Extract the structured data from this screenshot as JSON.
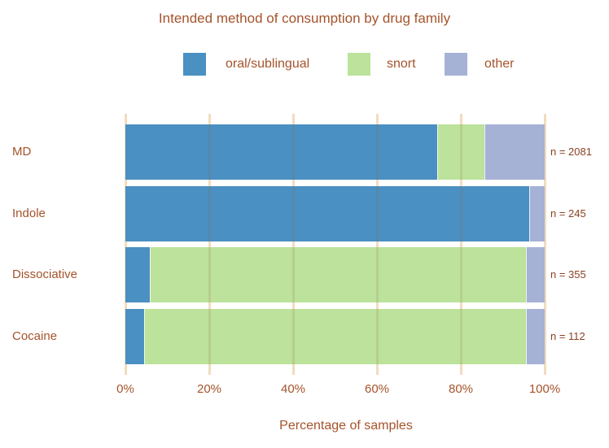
{
  "colors": {
    "background": "#ffffff",
    "title": "#a5532b",
    "axis_text": "#a5532b",
    "annotation": "#8a4122",
    "grid": "#f2dcbe",
    "grid_on_bar": "rgba(150,108,60,0.16)"
  },
  "chart_data": {
    "type": "bar",
    "orientation": "horizontal",
    "stacked": true,
    "title": "Intended method of consumption by drug family",
    "xlabel": "Percentage of samples",
    "categories": [
      "MD",
      "Indole",
      "Dissociative",
      "Cocaine"
    ],
    "series": [
      {
        "name": "oral/sublingual",
        "color": "#4a90c2",
        "values": [
          74.4,
          96.4,
          5.9,
          4.5
        ]
      },
      {
        "name": "snort",
        "color": "#bce29b",
        "values": [
          11.3,
          0.0,
          89.6,
          91.0
        ]
      },
      {
        "name": "other",
        "color": "#a6b1d6",
        "values": [
          14.3,
          3.6,
          4.5,
          4.5
        ]
      }
    ],
    "annotations": [
      "n = 2081",
      "n = 245",
      "n = 355",
      "n = 112"
    ],
    "x_ticks": [
      "0%",
      "20%",
      "40%",
      "60%",
      "80%",
      "100%"
    ],
    "xlim": [
      0,
      100
    ],
    "grid": true,
    "legend_position": "top"
  }
}
